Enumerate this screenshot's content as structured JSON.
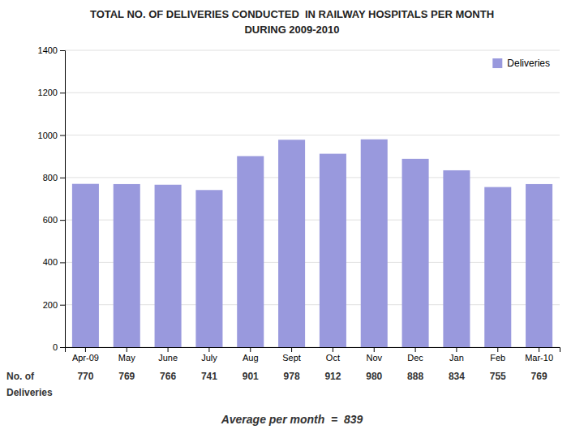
{
  "chart_data": {
    "type": "bar",
    "title": "TOTAL NO. OF DELIVERIES CONDUCTED  IN RAILWAY HOSPITALS PER MONTH",
    "subtitle": "DURING 2009-2010",
    "categories": [
      "Apr-09",
      "May",
      "June",
      "July",
      "Aug",
      "Sept",
      "Oct",
      "Nov",
      "Dec",
      "Jan",
      "Feb",
      "Mar-10"
    ],
    "series": [
      {
        "name": "Deliveries",
        "color": "#9999dd",
        "values": [
          770,
          769,
          766,
          741,
          901,
          978,
          912,
          980,
          888,
          834,
          755,
          769
        ]
      }
    ],
    "ylim": [
      0,
      1400
    ],
    "yticks": [
      0,
      200,
      400,
      600,
      800,
      1000,
      1200,
      1400
    ],
    "grid": true,
    "legend": "upper right",
    "data_labels": true,
    "annotations": [
      "No. of",
      "Deliveries",
      "Average per month  =  839"
    ]
  }
}
